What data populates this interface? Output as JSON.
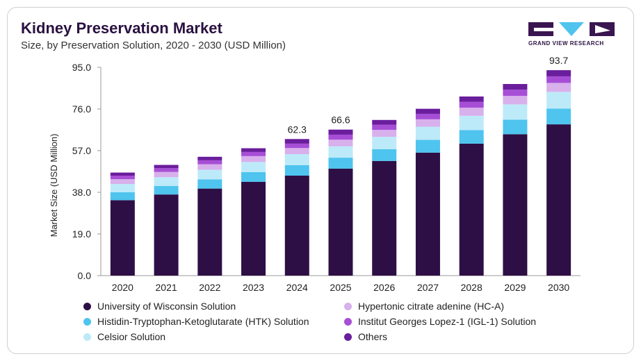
{
  "header": {
    "title": "Kidney Preservation Market",
    "subtitle": "Size, by Preservation Solution, 2020 - 2030 (USD Million)"
  },
  "logo": {
    "text": "GRAND VIEW RESEARCH"
  },
  "chart_data": {
    "type": "bar",
    "stacked": true,
    "title": "Kidney Preservation Market",
    "subtitle": "Size, by Preservation Solution, 2020 - 2030 (USD Million)",
    "xlabel": "",
    "ylabel": "Market Size (USD Million)",
    "ylim": [
      0,
      95
    ],
    "yticks": [
      "0.0",
      "19.0",
      "38.0",
      "57.0",
      "76.0",
      "95.0"
    ],
    "grid": false,
    "legend_position": "bottom",
    "categories": [
      "2020",
      "2021",
      "2022",
      "2023",
      "2024",
      "2025",
      "2026",
      "2027",
      "2028",
      "2029",
      "2030"
    ],
    "series": [
      {
        "name": "University of Wisconsin Solution",
        "color": "#2e0f45",
        "values": [
          34.4,
          37.0,
          39.7,
          42.8,
          45.6,
          48.8,
          52.3,
          56.1,
          60.2,
          64.5,
          69.0
        ]
      },
      {
        "name": "Histidin-Tryptophan-Ketoglutarate (HTK) Solution",
        "color": "#4ec4ee",
        "values": [
          3.6,
          3.9,
          4.2,
          4.4,
          4.8,
          5.0,
          5.4,
          5.8,
          6.2,
          6.6,
          7.2
        ]
      },
      {
        "name": "Celsior Solution",
        "color": "#bdeaf9",
        "values": [
          3.8,
          4.0,
          4.4,
          4.6,
          5.0,
          5.2,
          5.6,
          6.0,
          6.5,
          7.0,
          7.6
        ]
      },
      {
        "name": "Hypertonic citrate adenine (HC-A)",
        "color": "#d8b0ec",
        "values": [
          2.2,
          2.4,
          2.5,
          2.7,
          2.8,
          3.0,
          3.2,
          3.4,
          3.7,
          3.9,
          4.1
        ]
      },
      {
        "name": "Institut Georges Lopez-1 (IGL-1) Solution",
        "color": "#a74ed6",
        "values": [
          1.6,
          1.7,
          1.8,
          1.9,
          2.0,
          2.3,
          2.3,
          2.5,
          2.7,
          2.8,
          3.0
        ]
      },
      {
        "name": "Others",
        "color": "#6a1d9c",
        "values": [
          1.4,
          1.5,
          1.6,
          1.7,
          2.1,
          2.3,
          2.2,
          2.3,
          2.4,
          2.6,
          2.8
        ]
      }
    ],
    "annotations": [
      {
        "category": "2024",
        "label": "62.3"
      },
      {
        "category": "2025",
        "label": "66.6"
      },
      {
        "category": "2030",
        "label": "93.7"
      }
    ]
  }
}
